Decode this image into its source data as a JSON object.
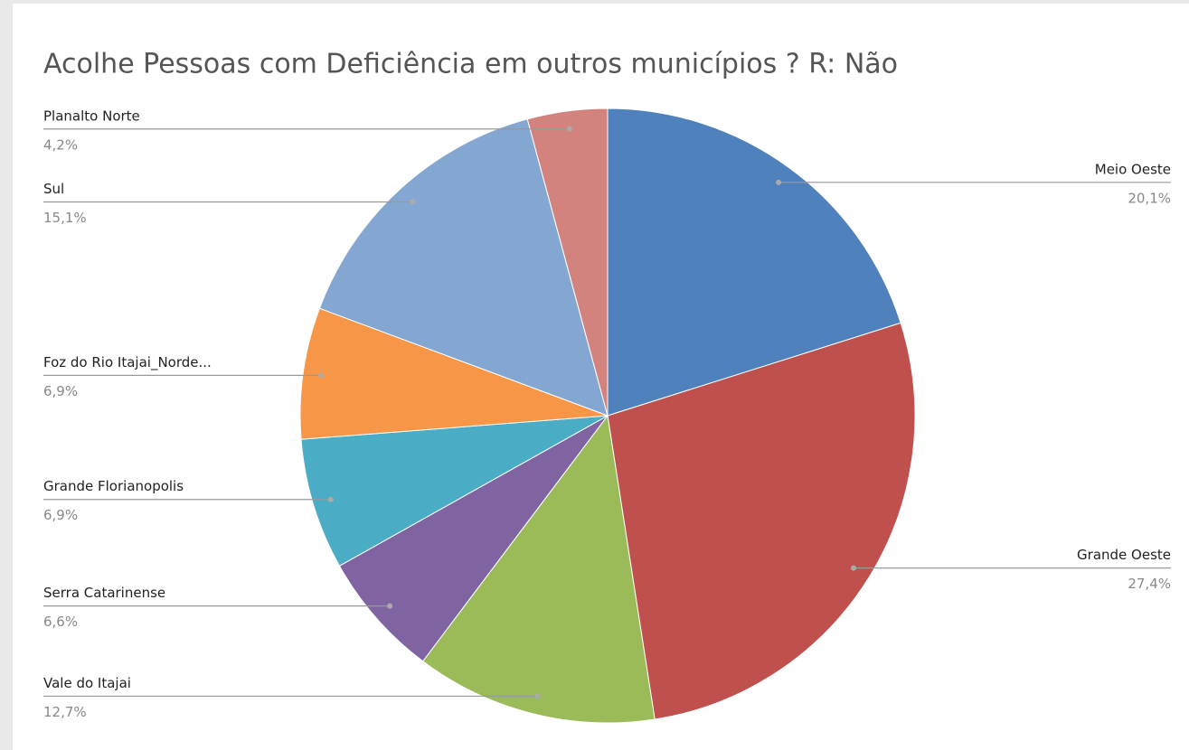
{
  "chart_data": {
    "type": "pie",
    "title": "Acolhe Pessoas com Deficiência em outros municípios ? R: Não",
    "categories": [
      "Meio Oeste",
      "Grande Oeste",
      "Vale do Itajai",
      "Serra Catarinense",
      "Grande Florianopolis",
      "Foz do Rio Itajai_Norde...",
      "Sul",
      "Planalto Norte"
    ],
    "values": [
      20.1,
      27.4,
      12.7,
      6.6,
      6.9,
      6.9,
      15.1,
      4.2
    ],
    "value_labels": [
      "20,1%",
      "27,4%",
      "12,7%",
      "6,6%",
      "6,9%",
      "6,9%",
      "15,1%",
      "4,2%"
    ],
    "colors": [
      "#4f81bd",
      "#c0504d",
      "#9bbb59",
      "#8064a2",
      "#4bacc6",
      "#f79646",
      "#84a7d2",
      "#d3837e"
    ]
  }
}
